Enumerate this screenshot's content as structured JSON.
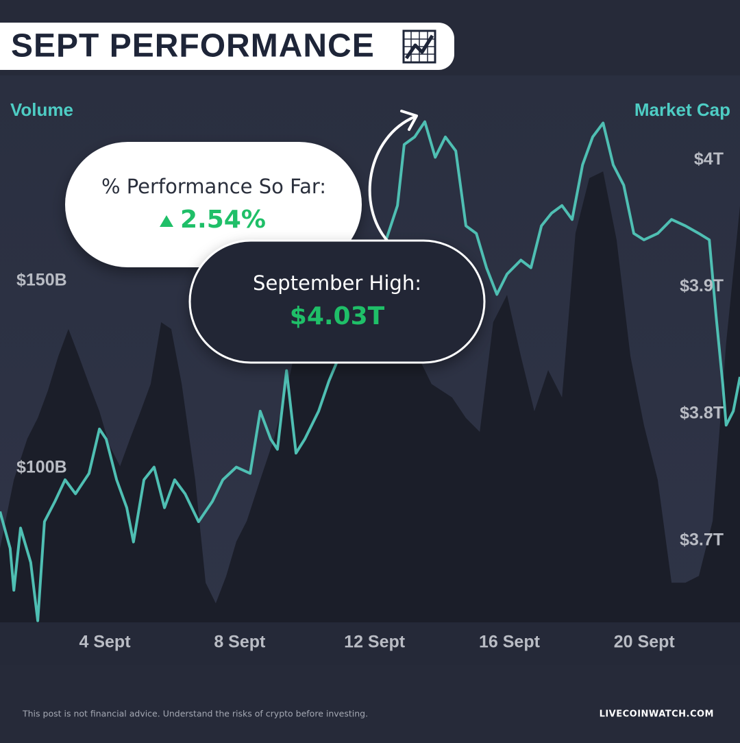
{
  "chart_data": {
    "type": "line",
    "title": "SEPT PERFORMANCE",
    "ylabel": "Volume",
    "y2label": "Market Cap",
    "xlim": [
      0.89,
      22.84
    ],
    "xticks": [
      {
        "value": 4,
        "label": "4 Sept"
      },
      {
        "value": 8,
        "label": "8 Sept"
      },
      {
        "value": 12,
        "label": "12 Sept"
      },
      {
        "value": 16,
        "label": "16 Sept"
      },
      {
        "value": 20,
        "label": "20 Sept"
      }
    ],
    "ylim": [
      58.8,
      201.3
    ],
    "yticks": [
      {
        "value": 100,
        "label": "$100B"
      },
      {
        "value": 150,
        "label": "$150B"
      }
    ],
    "y2lim": [
      3.6357,
      4.0557
    ],
    "y2ticks": [
      {
        "value": 3.7,
        "label": "$3.7T"
      },
      {
        "value": 3.8,
        "label": "$3.8T"
      },
      {
        "value": 3.9,
        "label": "$3.9T"
      },
      {
        "value": 4,
        "label": "$4T"
      }
    ],
    "grid": false,
    "series": [
      {
        "name": "Volume",
        "kind": "area",
        "axis": "y",
        "color": "#1b1e29",
        "x": [
          0.89,
          1.3,
          1.7,
          2.01,
          2.31,
          2.62,
          2.92,
          3.23,
          3.53,
          3.84,
          4.14,
          4.45,
          4.75,
          5.06,
          5.36,
          5.67,
          5.97,
          6.28,
          6.68,
          6.99,
          7.29,
          7.6,
          7.9,
          8.21,
          8.61,
          9.02,
          9.43,
          9.83,
          10.24,
          10.65,
          11.46,
          12.27,
          13.09,
          13.69,
          14.3,
          14.71,
          15.12,
          15.52,
          15.93,
          16.34,
          16.74,
          17.15,
          17.56,
          17.96,
          18.37,
          18.78,
          19.18,
          19.59,
          19.99,
          20.4,
          20.81,
          21.22,
          21.62,
          22.03,
          22.43,
          22.84
        ],
        "values": [
          78.6,
          96.9,
          107.9,
          113.4,
          120.7,
          129.9,
          137.2,
          129.9,
          122.5,
          115.2,
          106.0,
          100.5,
          107.9,
          115.2,
          122.5,
          139.0,
          137.2,
          122.5,
          96.9,
          69.4,
          63.9,
          71.2,
          80.4,
          85.9,
          96.9,
          107.9,
          122.5,
          139.0,
          148.2,
          153.7,
          155.5,
          148.2,
          133.5,
          122.5,
          118.9,
          113.4,
          109.7,
          139.0,
          146.3,
          129.9,
          115.2,
          126.2,
          118.9,
          162.8,
          177.5,
          179.3,
          161.0,
          129.9,
          111.5,
          96.9,
          69.4,
          69.4,
          71.2,
          85.9,
          133.5,
          170.1
        ]
      },
      {
        "name": "Market Cap",
        "kind": "line",
        "axis": "y2",
        "color": "#4fbfb3",
        "x": [
          0.89,
          1.19,
          1.3,
          1.5,
          1.8,
          2.01,
          2.21,
          2.52,
          2.82,
          3.13,
          3.53,
          3.84,
          4.04,
          4.35,
          4.65,
          4.85,
          5.16,
          5.46,
          5.77,
          6.07,
          6.38,
          6.78,
          7.19,
          7.5,
          7.9,
          8.31,
          8.61,
          8.92,
          9.12,
          9.39,
          9.67,
          9.93,
          10.34,
          10.65,
          10.95,
          12.27,
          12.68,
          12.88,
          13.19,
          13.49,
          13.8,
          14.1,
          14.41,
          14.71,
          15.02,
          15.32,
          15.63,
          15.93,
          16.34,
          16.64,
          16.95,
          17.25,
          17.56,
          17.86,
          18.17,
          18.47,
          18.78,
          19.08,
          19.39,
          19.69,
          19.99,
          20.4,
          20.81,
          21.22,
          21.62,
          21.93,
          22.13,
          22.33,
          22.43,
          22.64,
          22.84
        ],
        "values": [
          3.723,
          3.694,
          3.661,
          3.71,
          3.683,
          3.637,
          3.715,
          3.731,
          3.748,
          3.737,
          3.753,
          3.788,
          3.78,
          3.748,
          3.726,
          3.699,
          3.748,
          3.758,
          3.726,
          3.748,
          3.737,
          3.715,
          3.731,
          3.748,
          3.758,
          3.753,
          3.802,
          3.78,
          3.772,
          3.834,
          3.769,
          3.78,
          3.802,
          3.826,
          3.845,
          3.931,
          3.964,
          4.012,
          4.018,
          4.03,
          4.002,
          4.018,
          4.007,
          3.948,
          3.942,
          3.915,
          3.894,
          3.91,
          3.921,
          3.915,
          3.948,
          3.958,
          3.964,
          3.953,
          3.996,
          4.018,
          4.029,
          3.996,
          3.98,
          3.942,
          3.937,
          3.942,
          3.953,
          3.948,
          3.942,
          3.937,
          3.877,
          3.823,
          3.791,
          3.802,
          3.829
        ]
      }
    ],
    "annotations": [
      {
        "label": "% Performance So Far:",
        "text": "2.54%"
      },
      {
        "label": "September High:",
        "text": "$4.03T"
      }
    ],
    "footer": "This post is not financial advice. Understand the risks of crypto before investing.",
    "source": "LIVECOINWATCH.COM"
  }
}
